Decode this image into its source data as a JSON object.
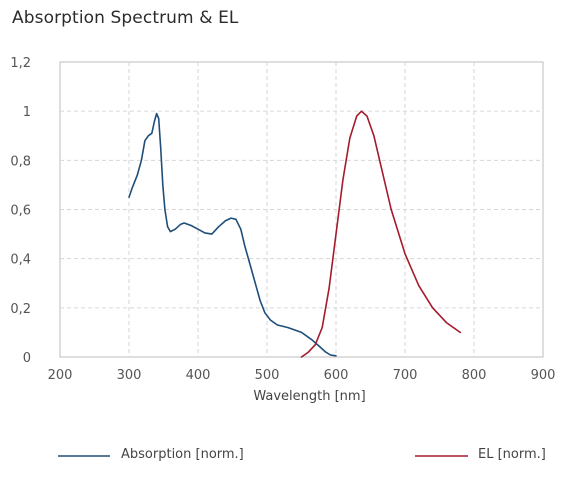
{
  "chart_data": {
    "type": "line",
    "title": "Absorption Spectrum & EL",
    "xlabel": "Wavelength [nm]",
    "ylabel": "",
    "xlim": [
      200,
      900
    ],
    "ylim": [
      0,
      1.2
    ],
    "x_ticks": [
      "200",
      "300",
      "400",
      "500",
      "600",
      "700",
      "800",
      "900"
    ],
    "y_ticks": [
      "0",
      "0,2",
      "0,4",
      "0,6",
      "0,8",
      "1",
      "1,2"
    ],
    "grid": true,
    "legend_position": "bottom",
    "series": [
      {
        "name": "Absorption [norm.]",
        "color": "#1f4e79",
        "points": [
          [
            300,
            0.65
          ],
          [
            305,
            0.69
          ],
          [
            312,
            0.74
          ],
          [
            318,
            0.8
          ],
          [
            323,
            0.88
          ],
          [
            328,
            0.9
          ],
          [
            333,
            0.91
          ],
          [
            337,
            0.96
          ],
          [
            340,
            0.99
          ],
          [
            343,
            0.97
          ],
          [
            346,
            0.85
          ],
          [
            349,
            0.7
          ],
          [
            352,
            0.6
          ],
          [
            356,
            0.53
          ],
          [
            360,
            0.51
          ],
          [
            367,
            0.52
          ],
          [
            375,
            0.54
          ],
          [
            380,
            0.545
          ],
          [
            390,
            0.535
          ],
          [
            400,
            0.52
          ],
          [
            410,
            0.505
          ],
          [
            420,
            0.5
          ],
          [
            430,
            0.53
          ],
          [
            440,
            0.555
          ],
          [
            448,
            0.565
          ],
          [
            455,
            0.56
          ],
          [
            462,
            0.52
          ],
          [
            468,
            0.45
          ],
          [
            475,
            0.38
          ],
          [
            482,
            0.31
          ],
          [
            490,
            0.23
          ],
          [
            497,
            0.18
          ],
          [
            505,
            0.15
          ],
          [
            515,
            0.13
          ],
          [
            530,
            0.12
          ],
          [
            550,
            0.1
          ],
          [
            565,
            0.07
          ],
          [
            575,
            0.045
          ],
          [
            585,
            0.02
          ],
          [
            592,
            0.008
          ],
          [
            600,
            0.005
          ]
        ]
      },
      {
        "name": "EL [norm.]",
        "color": "#a31b2c",
        "points": [
          [
            550,
            0.0
          ],
          [
            560,
            0.02
          ],
          [
            570,
            0.05
          ],
          [
            580,
            0.12
          ],
          [
            590,
            0.28
          ],
          [
            600,
            0.5
          ],
          [
            610,
            0.72
          ],
          [
            620,
            0.89
          ],
          [
            630,
            0.98
          ],
          [
            637,
            1.0
          ],
          [
            645,
            0.98
          ],
          [
            655,
            0.9
          ],
          [
            665,
            0.78
          ],
          [
            680,
            0.6
          ],
          [
            700,
            0.42
          ],
          [
            720,
            0.29
          ],
          [
            740,
            0.2
          ],
          [
            760,
            0.14
          ],
          [
            770,
            0.12
          ],
          [
            780,
            0.1
          ]
        ]
      }
    ]
  }
}
